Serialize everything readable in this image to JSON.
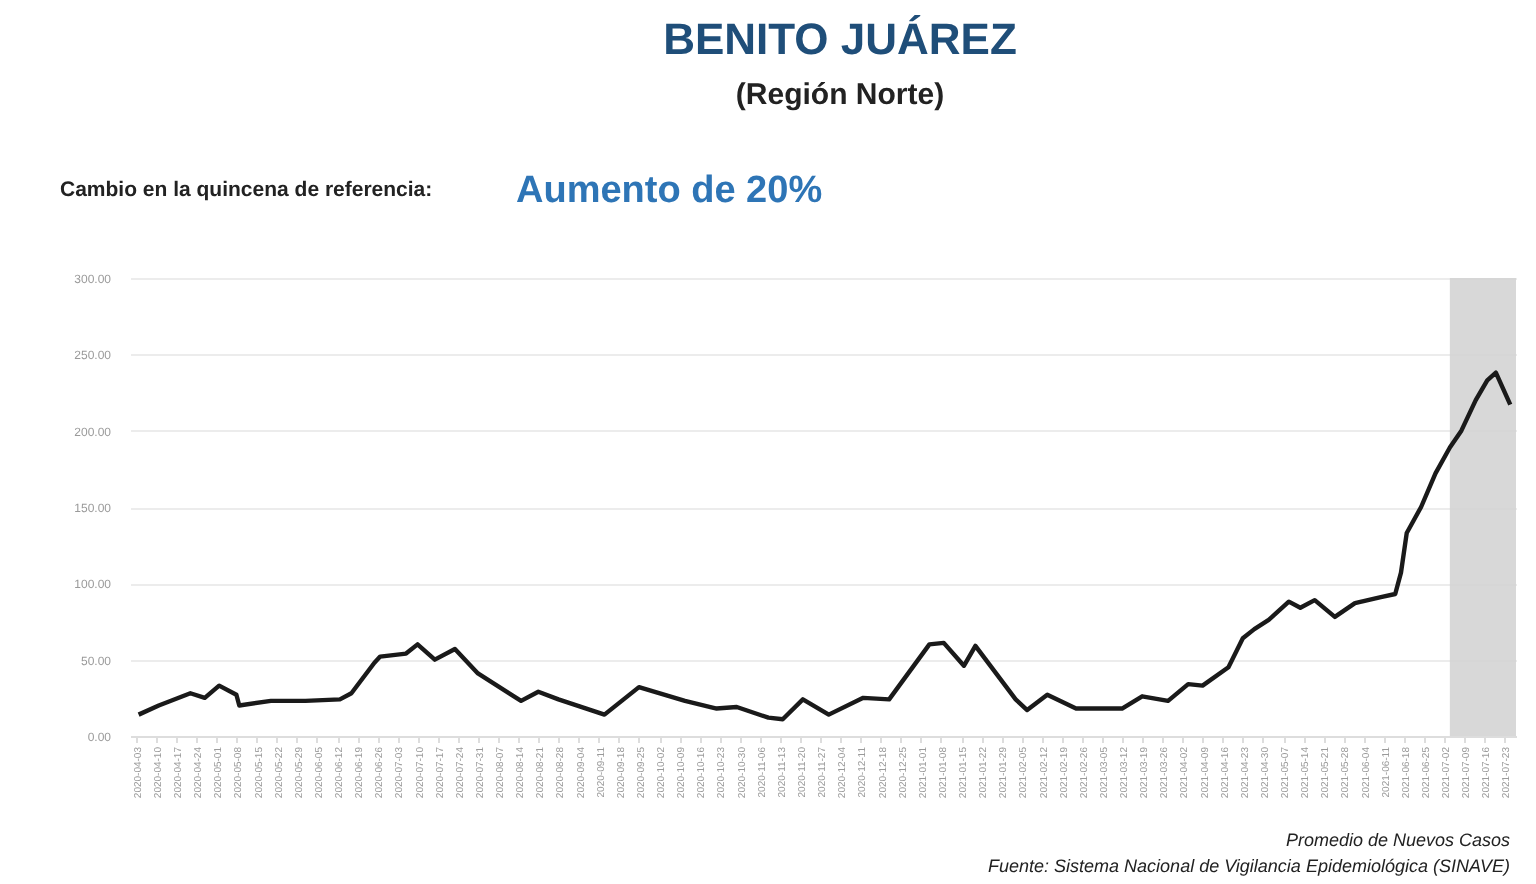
{
  "chart_data": {
    "type": "line",
    "title": "BENITO JUÁREZ",
    "subtitle": "(Región Norte)",
    "annotations": [
      "Cambio en la quincena de referencia:",
      "Aumento de 20%",
      "Promedio de Nuevos Casos",
      "Fuente: Sistema Nacional de Vigilancia Epidemiológica (SINAVE)"
    ],
    "x": [
      "2020-04-04",
      "2020-04-11",
      "2020-04-22",
      "2020-04-27",
      "2020-05-02",
      "2020-05-08",
      "2020-05-09",
      "2020-05-20",
      "2020-06-01",
      "2020-06-13",
      "2020-06-17",
      "2020-06-25",
      "2020-06-27",
      "2020-07-06",
      "2020-07-10",
      "2020-07-16",
      "2020-07-23",
      "2020-07-31",
      "2020-08-15",
      "2020-08-21",
      "2020-08-28",
      "2020-09-13",
      "2020-09-25",
      "2020-10-11",
      "2020-10-22",
      "2020-10-29",
      "2020-11-09",
      "2020-11-14",
      "2020-11-21",
      "2020-11-30",
      "2020-12-12",
      "2020-12-21",
      "2021-01-04",
      "2021-01-09",
      "2021-01-16",
      "2021-01-20",
      "2021-02-03",
      "2021-02-07",
      "2021-02-14",
      "2021-02-24",
      "2021-03-12",
      "2021-03-19",
      "2021-03-28",
      "2021-04-04",
      "2021-04-09",
      "2021-04-18",
      "2021-04-23",
      "2021-04-27",
      "2021-05-02",
      "2021-05-09",
      "2021-05-13",
      "2021-05-18",
      "2021-05-25",
      "2021-06-01",
      "2021-06-10",
      "2021-06-15",
      "2021-06-17",
      "2021-06-19",
      "2021-06-24",
      "2021-06-29",
      "2021-07-04",
      "2021-07-08",
      "2021-07-13",
      "2021-07-17",
      "2021-07-20",
      "2021-07-25"
    ],
    "series": [
      {
        "color": "#1a1a1a",
        "values": [
          14,
          20,
          28,
          25,
          33,
          27,
          20,
          23,
          23,
          24,
          28,
          48,
          52,
          54,
          60,
          50,
          57,
          41,
          23,
          29,
          24,
          14,
          32,
          23,
          18,
          19,
          12,
          11,
          24,
          14,
          25,
          24,
          60,
          61,
          46,
          59,
          24,
          17,
          27,
          18,
          18,
          26,
          23,
          34,
          33,
          45,
          64,
          70,
          76,
          88,
          84,
          89,
          78,
          87,
          91,
          93,
          107,
          133,
          150,
          172,
          189,
          200,
          220,
          233,
          238,
          217
        ]
      }
    ],
    "xlim": [
      "2020-04-01",
      "2021-07-27"
    ],
    "xticks": [
      "2020-04-03",
      "2020-04-10",
      "2020-04-17",
      "2020-04-24",
      "2020-05-01",
      "2020-05-08",
      "2020-05-15",
      "2020-05-22",
      "2020-05-29",
      "2020-06-05",
      "2020-06-12",
      "2020-06-19",
      "2020-06-26",
      "2020-07-03",
      "2020-07-10",
      "2020-07-17",
      "2020-07-24",
      "2020-07-31",
      "2020-08-07",
      "2020-08-14",
      "2020-08-21",
      "2020-08-28",
      "2020-09-04",
      "2020-09-11",
      "2020-09-18",
      "2020-09-25",
      "2020-10-02",
      "2020-10-09",
      "2020-10-16",
      "2020-10-23",
      "2020-10-30",
      "2020-11-06",
      "2020-11-13",
      "2020-11-20",
      "2020-11-27",
      "2020-12-04",
      "2020-12-11",
      "2020-12-18",
      "2020-12-25",
      "2021-01-01",
      "2021-01-08",
      "2021-01-15",
      "2021-01-22",
      "2021-01-29",
      "2021-02-05",
      "2021-02-12",
      "2021-02-19",
      "2021-02-26",
      "2021-03-05",
      "2021-03-12",
      "2021-03-19",
      "2021-03-26",
      "2021-04-02",
      "2021-04-09",
      "2021-04-16",
      "2021-04-23",
      "2021-04-30",
      "2021-05-07",
      "2021-05-14",
      "2021-05-21",
      "2021-05-28",
      "2021-06-04",
      "2021-06-11",
      "2021-06-18",
      "2021-06-25",
      "2021-07-02",
      "2021-07-09",
      "2021-07-16",
      "2021-07-23"
    ],
    "ylim": [
      0,
      300
    ],
    "yticks": [
      {
        "value": 0,
        "label": "0.00"
      },
      {
        "value": 50,
        "label": "50.00"
      },
      {
        "value": 100,
        "label": "100.00"
      },
      {
        "value": 150,
        "label": "150.00"
      },
      {
        "value": 200,
        "label": "200.00"
      },
      {
        "value": 250,
        "label": "250.00"
      },
      {
        "value": 300,
        "label": "300.00"
      }
    ],
    "bands": [
      {
        "axis": "x",
        "from": "2021-07-04",
        "to": "2021-07-27",
        "color": "#d4d4d4"
      }
    ],
    "grid": "y",
    "marker": "none",
    "line_style": "solid"
  }
}
